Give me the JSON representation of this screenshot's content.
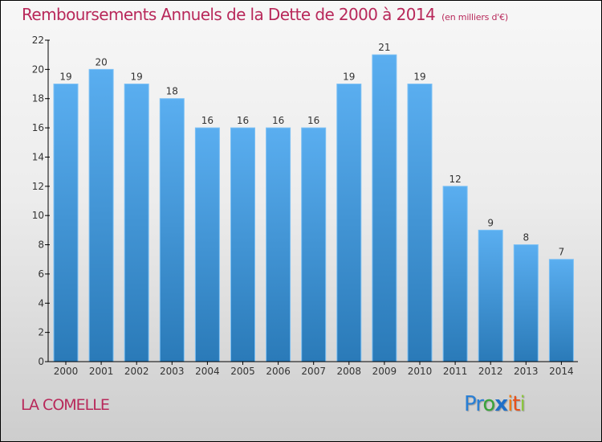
{
  "header": {
    "title": "Remboursements Annuels de la Dette de 2000 à 2014",
    "unit": "(en milliers d'€)"
  },
  "footer": {
    "place": "LA COMELLE",
    "logo": {
      "letters": [
        {
          "char": "P",
          "color": "#2a7fd4"
        },
        {
          "char": "r",
          "color": "#2a7fd4"
        },
        {
          "char": "o",
          "color": "#3aa33a"
        },
        {
          "char": "x",
          "color": "#1f6fc8"
        },
        {
          "char": "i",
          "color": "#f07a10"
        },
        {
          "char": "t",
          "color": "#e8501a"
        },
        {
          "char": "i",
          "color": "#8cc63f"
        }
      ]
    }
  },
  "colors": {
    "title": "#b8285a",
    "bar_top": "#5aaef0",
    "bar_bottom": "#2a7ab8"
  },
  "chart_data": {
    "type": "bar",
    "title": "Remboursements Annuels de la Dette de 2000 à 2014 (en milliers d'€)",
    "xlabel": "",
    "ylabel": "",
    "categories": [
      "2000",
      "2001",
      "2002",
      "2003",
      "2004",
      "2005",
      "2006",
      "2007",
      "2008",
      "2009",
      "2010",
      "2011",
      "2012",
      "2013",
      "2014"
    ],
    "values": [
      19,
      20,
      19,
      18,
      16,
      16,
      16,
      16,
      19,
      21,
      19,
      12,
      9,
      8,
      7
    ],
    "ylim": [
      0,
      22
    ],
    "yticks": [
      0,
      2,
      4,
      6,
      8,
      10,
      12,
      14,
      16,
      18,
      20,
      22
    ],
    "grid": false,
    "legend": "none"
  }
}
